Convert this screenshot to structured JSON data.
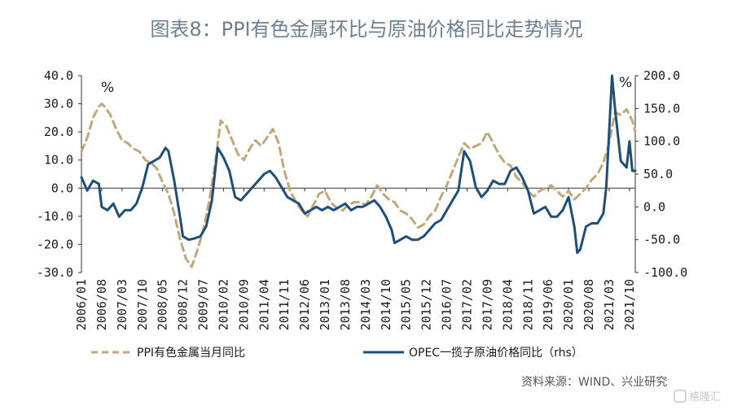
{
  "watermark": "格隆汇",
  "chart_data": {
    "type": "line",
    "title": "图表8：PPI有色金属环比与原油价格同比走势情况",
    "source": "资料来源：WIND、兴业研究",
    "left_axis": {
      "unit": "%",
      "ylim": [
        -30,
        40
      ],
      "ticks": [
        "40.0",
        "30.0",
        "20.0",
        "10.0",
        "0.0",
        "-10.0",
        "-20.0",
        "-30.0"
      ]
    },
    "right_axis": {
      "unit": "%",
      "ylim": [
        -100,
        200
      ],
      "ticks": [
        "200.0",
        "150.0",
        "100.0",
        "50.0",
        "0.0",
        "-50.0",
        "-100.0"
      ]
    },
    "x_range": [
      "2006-01",
      "2021-12"
    ],
    "categories": [
      "2006/01",
      "2006/08",
      "2007/03",
      "2007/10",
      "2008/05",
      "2008/12",
      "2009/07",
      "2010/02",
      "2010/09",
      "2011/04",
      "2011/11",
      "2012/06",
      "2013/01",
      "2013/08",
      "2014/03",
      "2014/10",
      "2015/05",
      "2015/12",
      "2016/07",
      "2017/02",
      "2017/09",
      "2018/04",
      "2018/11",
      "2019/06",
      "2020/01",
      "2020/08",
      "2021/03",
      "2021/10"
    ],
    "series": [
      {
        "name": "PPI有色金属当月同比",
        "axis": "left",
        "color": "#c2a77c",
        "style": "dashed",
        "points": [
          [
            "2006-01",
            13
          ],
          [
            "2006-03",
            18
          ],
          [
            "2006-05",
            25
          ],
          [
            "2006-07",
            29
          ],
          [
            "2006-08",
            30
          ],
          [
            "2006-09",
            29
          ],
          [
            "2006-11",
            26
          ],
          [
            "2007-01",
            21
          ],
          [
            "2007-03",
            17
          ],
          [
            "2007-05",
            16
          ],
          [
            "2007-07",
            14
          ],
          [
            "2007-09",
            13
          ],
          [
            "2007-11",
            10
          ],
          [
            "2008-01",
            9
          ],
          [
            "2008-03",
            7
          ],
          [
            "2008-05",
            2
          ],
          [
            "2008-07",
            -2
          ],
          [
            "2008-09",
            -9
          ],
          [
            "2008-11",
            -18
          ],
          [
            "2009-01",
            -25
          ],
          [
            "2009-03",
            -28
          ],
          [
            "2009-05",
            -22
          ],
          [
            "2009-07",
            -15
          ],
          [
            "2009-09",
            -5
          ],
          [
            "2009-11",
            8
          ],
          [
            "2010-01",
            24
          ],
          [
            "2010-03",
            22
          ],
          [
            "2010-05",
            17
          ],
          [
            "2010-07",
            12
          ],
          [
            "2010-09",
            10
          ],
          [
            "2010-11",
            14
          ],
          [
            "2011-01",
            17
          ],
          [
            "2011-03",
            15
          ],
          [
            "2011-05",
            18
          ],
          [
            "2011-07",
            21
          ],
          [
            "2011-09",
            16
          ],
          [
            "2011-11",
            6
          ],
          [
            "2012-01",
            -1
          ],
          [
            "2012-03",
            -5
          ],
          [
            "2012-05",
            -8
          ],
          [
            "2012-07",
            -10
          ],
          [
            "2012-09",
            -6
          ],
          [
            "2012-11",
            -2
          ],
          [
            "2013-01",
            -1
          ],
          [
            "2013-03",
            -5
          ],
          [
            "2013-05",
            -7
          ],
          [
            "2013-07",
            -8
          ],
          [
            "2013-09",
            -6
          ],
          [
            "2013-11",
            -5
          ],
          [
            "2014-01",
            -5
          ],
          [
            "2014-03",
            -6
          ],
          [
            "2014-05",
            -3
          ],
          [
            "2014-07",
            1
          ],
          [
            "2014-09",
            -2
          ],
          [
            "2014-11",
            -4
          ],
          [
            "2015-01",
            -5
          ],
          [
            "2015-03",
            -8
          ],
          [
            "2015-05",
            -9
          ],
          [
            "2015-07",
            -11
          ],
          [
            "2015-09",
            -14
          ],
          [
            "2015-11",
            -13
          ],
          [
            "2016-01",
            -10
          ],
          [
            "2016-03",
            -8
          ],
          [
            "2016-05",
            -3
          ],
          [
            "2016-07",
            1
          ],
          [
            "2016-09",
            6
          ],
          [
            "2016-11",
            11
          ],
          [
            "2017-01",
            16
          ],
          [
            "2017-03",
            14
          ],
          [
            "2017-05",
            15
          ],
          [
            "2017-07",
            16
          ],
          [
            "2017-09",
            20
          ],
          [
            "2017-11",
            16
          ],
          [
            "2018-01",
            12
          ],
          [
            "2018-03",
            9
          ],
          [
            "2018-05",
            8
          ],
          [
            "2018-07",
            4
          ],
          [
            "2018-09",
            2
          ],
          [
            "2018-11",
            -1
          ],
          [
            "2019-01",
            -3
          ],
          [
            "2019-03",
            -1
          ],
          [
            "2019-05",
            0
          ],
          [
            "2019-07",
            1
          ],
          [
            "2019-09",
            -1
          ],
          [
            "2019-11",
            -3
          ],
          [
            "2020-01",
            -1
          ],
          [
            "2020-03",
            -4
          ],
          [
            "2020-05",
            -2
          ],
          [
            "2020-07",
            0
          ],
          [
            "2020-09",
            3
          ],
          [
            "2020-11",
            5
          ],
          [
            "2021-01",
            9
          ],
          [
            "2021-03",
            16
          ],
          [
            "2021-05",
            27
          ],
          [
            "2021-07",
            26
          ],
          [
            "2021-09",
            28
          ],
          [
            "2021-11",
            24
          ],
          [
            "2021-12",
            20
          ]
        ]
      },
      {
        "name": "OPEC一揽子原油价格同比（rhs）",
        "axis": "right",
        "color": "#1f4e79",
        "style": "solid",
        "points": [
          [
            "2006-01",
            45
          ],
          [
            "2006-03",
            25
          ],
          [
            "2006-05",
            40
          ],
          [
            "2006-07",
            35
          ],
          [
            "2006-08",
            0
          ],
          [
            "2006-10",
            -5
          ],
          [
            "2006-12",
            5
          ],
          [
            "2007-02",
            -15
          ],
          [
            "2007-04",
            -5
          ],
          [
            "2007-06",
            -5
          ],
          [
            "2007-08",
            5
          ],
          [
            "2007-10",
            30
          ],
          [
            "2007-12",
            65
          ],
          [
            "2008-02",
            70
          ],
          [
            "2008-04",
            75
          ],
          [
            "2008-06",
            90
          ],
          [
            "2008-07",
            85
          ],
          [
            "2008-09",
            40
          ],
          [
            "2008-11",
            -15
          ],
          [
            "2008-12",
            -45
          ],
          [
            "2009-02",
            -50
          ],
          [
            "2009-04",
            -48
          ],
          [
            "2009-06",
            -45
          ],
          [
            "2009-08",
            -30
          ],
          [
            "2009-10",
            10
          ],
          [
            "2009-12",
            90
          ],
          [
            "2010-02",
            75
          ],
          [
            "2010-04",
            55
          ],
          [
            "2010-06",
            15
          ],
          [
            "2010-08",
            10
          ],
          [
            "2010-10",
            20
          ],
          [
            "2010-12",
            30
          ],
          [
            "2011-02",
            40
          ],
          [
            "2011-04",
            50
          ],
          [
            "2011-06",
            55
          ],
          [
            "2011-08",
            45
          ],
          [
            "2011-10",
            30
          ],
          [
            "2011-12",
            15
          ],
          [
            "2012-02",
            10
          ],
          [
            "2012-04",
            5
          ],
          [
            "2012-06",
            -10
          ],
          [
            "2012-08",
            -5
          ],
          [
            "2012-10",
            0
          ],
          [
            "2012-12",
            -5
          ],
          [
            "2013-02",
            0
          ],
          [
            "2013-04",
            -5
          ],
          [
            "2013-06",
            0
          ],
          [
            "2013-08",
            5
          ],
          [
            "2013-10",
            -5
          ],
          [
            "2013-12",
            0
          ],
          [
            "2014-02",
            0
          ],
          [
            "2014-04",
            5
          ],
          [
            "2014-06",
            10
          ],
          [
            "2014-08",
            0
          ],
          [
            "2014-10",
            -15
          ],
          [
            "2014-12",
            -35
          ],
          [
            "2015-01",
            -55
          ],
          [
            "2015-03",
            -50
          ],
          [
            "2015-05",
            -45
          ],
          [
            "2015-07",
            -50
          ],
          [
            "2015-09",
            -50
          ],
          [
            "2015-11",
            -45
          ],
          [
            "2016-01",
            -35
          ],
          [
            "2016-03",
            -25
          ],
          [
            "2016-05",
            -20
          ],
          [
            "2016-07",
            -5
          ],
          [
            "2016-09",
            10
          ],
          [
            "2016-11",
            25
          ],
          [
            "2017-01",
            85
          ],
          [
            "2017-03",
            70
          ],
          [
            "2017-05",
            30
          ],
          [
            "2017-07",
            15
          ],
          [
            "2017-09",
            25
          ],
          [
            "2017-11",
            40
          ],
          [
            "2018-01",
            35
          ],
          [
            "2018-03",
            35
          ],
          [
            "2018-05",
            55
          ],
          [
            "2018-07",
            60
          ],
          [
            "2018-09",
            45
          ],
          [
            "2018-11",
            25
          ],
          [
            "2019-01",
            -10
          ],
          [
            "2019-03",
            -5
          ],
          [
            "2019-05",
            0
          ],
          [
            "2019-07",
            -15
          ],
          [
            "2019-09",
            -15
          ],
          [
            "2019-11",
            -5
          ],
          [
            "2020-01",
            15
          ],
          [
            "2020-03",
            -30
          ],
          [
            "2020-04",
            -70
          ],
          [
            "2020-05",
            -65
          ],
          [
            "2020-07",
            -30
          ],
          [
            "2020-09",
            -25
          ],
          [
            "2020-11",
            -25
          ],
          [
            "2021-01",
            -10
          ],
          [
            "2021-02",
            30
          ],
          [
            "2021-04",
            200
          ],
          [
            "2021-05",
            150
          ],
          [
            "2021-07",
            70
          ],
          [
            "2021-09",
            60
          ],
          [
            "2021-10",
            100
          ],
          [
            "2021-11",
            55
          ],
          [
            "2021-12",
            55
          ]
        ]
      }
    ],
    "legend": "bottom",
    "grid": false
  }
}
